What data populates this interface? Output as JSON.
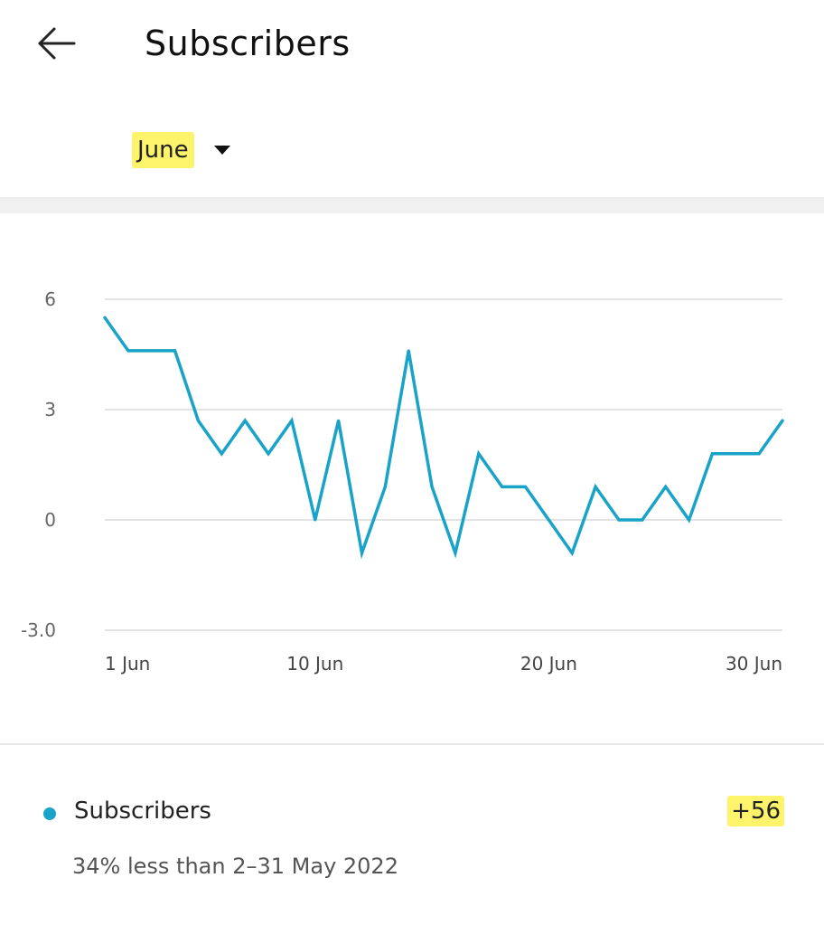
{
  "header": {
    "title": "Subscribers",
    "back_icon": "arrow-left-icon"
  },
  "period": {
    "selected": "June",
    "dropdown_icon": "caret-down-icon"
  },
  "chart_data": {
    "type": "line",
    "x": [
      "1 Jun",
      "2 Jun",
      "3 Jun",
      "4 Jun",
      "5 Jun",
      "6 Jun",
      "7 Jun",
      "8 Jun",
      "9 Jun",
      "10 Jun",
      "11 Jun",
      "12 Jun",
      "13 Jun",
      "14 Jun",
      "15 Jun",
      "16 Jun",
      "17 Jun",
      "18 Jun",
      "19 Jun",
      "20 Jun",
      "21 Jun",
      "22 Jun",
      "23 Jun",
      "24 Jun",
      "25 Jun",
      "26 Jun",
      "27 Jun",
      "28 Jun",
      "29 Jun",
      "30 Jun"
    ],
    "series": [
      {
        "name": "Subscribers",
        "values": [
          5.5,
          4.6,
          4.6,
          4.6,
          2.7,
          1.8,
          2.7,
          1.8,
          2.7,
          0,
          2.7,
          -0.9,
          0.9,
          4.6,
          0.9,
          -0.9,
          1.8,
          0.9,
          0.9,
          0,
          -0.9,
          0.9,
          0,
          0,
          0.9,
          0,
          1.8,
          1.8,
          1.8,
          2.7
        ]
      }
    ],
    "x_tick_labels": [
      "1 Jun",
      "10 Jun",
      "20 Jun",
      "30 Jun"
    ],
    "y_ticks": [
      "6",
      "3",
      "0",
      "-3.0"
    ],
    "ylim": [
      -3,
      6
    ],
    "grid": true,
    "line_color": "#1aa3c8"
  },
  "summary": {
    "label": "Subscribers",
    "total": "+56",
    "comparison": "34% less than 2–31 May 2022",
    "dot_color": "#1aa3c8"
  },
  "colors": {
    "accent": "#1aa3c8",
    "highlight": "#fdf46c",
    "divider": "#e6e6e6"
  }
}
